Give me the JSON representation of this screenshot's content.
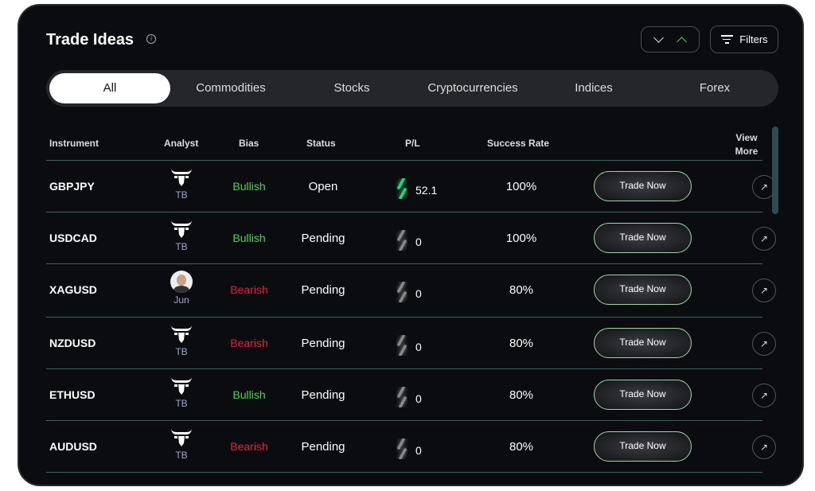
{
  "header": {
    "title": "Trade Ideas",
    "filters_label": "Filters"
  },
  "tabs": [
    "All",
    "Commodities",
    "Stocks",
    "Cryptocurrencies",
    "Indices",
    "Forex"
  ],
  "columns": {
    "instrument": "Instrument",
    "analyst": "Analyst",
    "bias": "Bias",
    "status": "Status",
    "pl": "P/L",
    "success": "Success Rate",
    "view": "View More"
  },
  "colors": {
    "bullish": "#3ddc4a",
    "bearish": "#e0213f",
    "accent": "#2ecf7a"
  },
  "rows": [
    {
      "instrument": "GBPJPY",
      "analyst": "TB",
      "bias": "Bullish",
      "status": "Open",
      "pl": "52.1",
      "rate": "100%",
      "action": "Trade Now"
    },
    {
      "instrument": "USDCAD",
      "analyst": "TB",
      "bias": "Bullish",
      "status": "Pending",
      "pl": "0",
      "rate": "100%",
      "action": "Trade Now"
    },
    {
      "instrument": "XAGUSD",
      "analyst": "Jun",
      "bias": "Bearish",
      "status": "Pending",
      "pl": "0",
      "rate": "80%",
      "action": "Trade Now"
    },
    {
      "instrument": "NZDUSD",
      "analyst": "TB",
      "bias": "Bearish",
      "status": "Pending",
      "pl": "0",
      "rate": "80%",
      "action": "Trade Now"
    },
    {
      "instrument": "ETHUSD",
      "analyst": "TB",
      "bias": "Bullish",
      "status": "Pending",
      "pl": "0",
      "rate": "80%",
      "action": "Trade Now"
    },
    {
      "instrument": "AUDUSD",
      "analyst": "TB",
      "bias": "Bearish",
      "status": "Pending",
      "pl": "0",
      "rate": "80%",
      "action": "Trade Now"
    }
  ]
}
